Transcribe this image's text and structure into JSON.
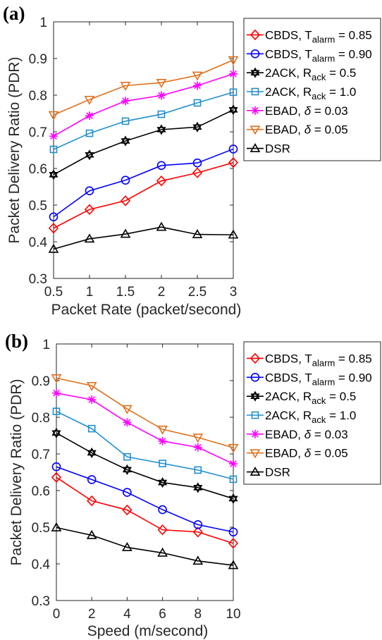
{
  "chart_data": [
    {
      "type": "line",
      "panel_label": "(a)",
      "xlabel": "Packet Rate (packet/second)",
      "ylabel": "Packet Delivery Ratio (PDR)",
      "xlim": [
        0.5,
        3
      ],
      "ylim": [
        0.3,
        1
      ],
      "xticks": [
        "0.5",
        "1",
        "1.5",
        "2",
        "2.5",
        "3"
      ],
      "yticks": [
        "0.3",
        "0.4",
        "0.5",
        "0.6",
        "0.7",
        "0.8",
        "0.9",
        "1"
      ],
      "x": [
        0.5,
        1,
        1.5,
        2,
        2.5,
        3
      ],
      "legend_position": "right, outside",
      "grid": false,
      "series": [
        {
          "name": "CBDS, T_alarm = 0.85",
          "legend": {
            "text": "CBDS, T",
            "sub": "alarm",
            "tail": " = 0.85"
          },
          "color": "#ff0000",
          "marker": "diamond",
          "values": [
            0.437,
            0.488,
            0.512,
            0.566,
            0.588,
            0.616
          ]
        },
        {
          "name": "CBDS, T_alarm = 0.90",
          "legend": {
            "text": "CBDS, T",
            "sub": "alarm",
            "tail": " = 0.90"
          },
          "color": "#0000ff",
          "marker": "circle",
          "values": [
            0.468,
            0.539,
            0.568,
            0.608,
            0.615,
            0.653
          ]
        },
        {
          "name": "2ACK, R_ack = 0.5",
          "legend": {
            "text": "2ACK, R",
            "sub": "ack",
            "tail": " = 0.5"
          },
          "color": "#000000",
          "marker": "hexagram",
          "values": [
            0.583,
            0.637,
            0.675,
            0.706,
            0.713,
            0.76
          ]
        },
        {
          "name": "2ACK, R_ack = 1.0",
          "legend": {
            "text": "2ACK, R",
            "sub": "ack",
            "tail": " = 1.0"
          },
          "color": "#1f8fcf",
          "marker": "square",
          "values": [
            0.652,
            0.696,
            0.729,
            0.748,
            0.779,
            0.808
          ]
        },
        {
          "name": "EBAD, δ = 0.03",
          "legend": {
            "text": "EBAD, ",
            "italic": "δ",
            "tail": " = 0.03"
          },
          "color": "#ff00ff",
          "marker": "asterisk",
          "values": [
            0.688,
            0.744,
            0.784,
            0.799,
            0.826,
            0.858
          ]
        },
        {
          "name": "EBAD, δ = 0.05",
          "legend": {
            "text": "EBAD, ",
            "italic": "δ",
            "tail": " = 0.05"
          },
          "color": "#e0701f",
          "marker": "triangle-down",
          "values": [
            0.746,
            0.788,
            0.826,
            0.834,
            0.854,
            0.896
          ]
        },
        {
          "name": "DSR",
          "legend": {
            "text": "DSR"
          },
          "color": "#000000",
          "marker": "triangle-up",
          "values": [
            0.38,
            0.408,
            0.421,
            0.44,
            0.42,
            0.419
          ]
        }
      ]
    },
    {
      "type": "line",
      "panel_label": "(b)",
      "xlabel": "Speed (m/second)",
      "ylabel": "Packet Delivery Ratio (PDR)",
      "xlim": [
        0,
        10
      ],
      "ylim": [
        0.3,
        1
      ],
      "xticks": [
        "0",
        "2",
        "4",
        "6",
        "8",
        "10"
      ],
      "yticks": [
        "0.3",
        "0.4",
        "0.5",
        "0.6",
        "0.7",
        "0.8",
        "0.9",
        "1"
      ],
      "x": [
        0,
        2,
        4,
        6,
        8,
        10
      ],
      "legend_position": "right, outside",
      "grid": false,
      "series": [
        {
          "name": "CBDS, T_alarm = 0.85",
          "legend": {
            "text": "CBDS, T",
            "sub": "alarm",
            "tail": " = 0.85"
          },
          "color": "#ff0000",
          "marker": "diamond",
          "values": [
            0.636,
            0.572,
            0.547,
            0.493,
            0.487,
            0.456
          ]
        },
        {
          "name": "CBDS, T_alarm = 0.90",
          "legend": {
            "text": "CBDS, T",
            "sub": "alarm",
            "tail": " = 0.90"
          },
          "color": "#0000ff",
          "marker": "circle",
          "values": [
            0.665,
            0.63,
            0.595,
            0.548,
            0.507,
            0.487
          ]
        },
        {
          "name": "2ACK, R_ack = 0.5",
          "legend": {
            "text": "2ACK, R",
            "sub": "ack",
            "tail": " = 0.5"
          },
          "color": "#000000",
          "marker": "hexagram",
          "values": [
            0.757,
            0.703,
            0.657,
            0.622,
            0.608,
            0.578
          ]
        },
        {
          "name": "2ACK, R_ack = 1.0",
          "legend": {
            "text": "2ACK, R",
            "sub": "ack",
            "tail": " = 1.0"
          },
          "color": "#1f8fcf",
          "marker": "square",
          "values": [
            0.816,
            0.769,
            0.692,
            0.674,
            0.656,
            0.631
          ]
        },
        {
          "name": "EBAD, δ = 0.03",
          "legend": {
            "text": "EBAD, ",
            "italic": "δ",
            "tail": " = 0.03"
          },
          "color": "#ff00ff",
          "marker": "asterisk",
          "values": [
            0.866,
            0.848,
            0.786,
            0.735,
            0.718,
            0.673
          ]
        },
        {
          "name": "EBAD, δ = 0.05",
          "legend": {
            "text": "EBAD, ",
            "italic": "δ",
            "tail": " = 0.05"
          },
          "color": "#e0701f",
          "marker": "triangle-down",
          "values": [
            0.907,
            0.886,
            0.823,
            0.767,
            0.745,
            0.717
          ]
        },
        {
          "name": "DSR",
          "legend": {
            "text": "DSR"
          },
          "color": "#000000",
          "marker": "triangle-up",
          "values": [
            0.499,
            0.478,
            0.445,
            0.43,
            0.408,
            0.396
          ]
        }
      ]
    }
  ]
}
